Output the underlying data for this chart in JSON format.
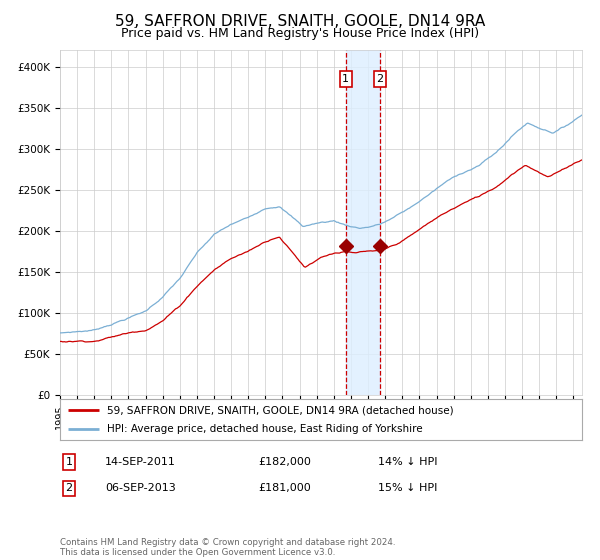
{
  "title": "59, SAFFRON DRIVE, SNAITH, GOOLE, DN14 9RA",
  "subtitle": "Price paid vs. HM Land Registry's House Price Index (HPI)",
  "legend_house": "59, SAFFRON DRIVE, SNAITH, GOOLE, DN14 9RA (detached house)",
  "legend_hpi": "HPI: Average price, detached house, East Riding of Yorkshire",
  "sale1_date": "14-SEP-2011",
  "sale1_price": "£182,000",
  "sale1_hpi": "14% ↓ HPI",
  "sale1_year": 2011.7,
  "sale1_value": 182000,
  "sale2_date": "06-SEP-2013",
  "sale2_price": "£181,000",
  "sale2_hpi": "15% ↓ HPI",
  "sale2_year": 2013.7,
  "sale2_value": 181000,
  "footer": "Contains HM Land Registry data © Crown copyright and database right 2024.\nThis data is licensed under the Open Government Licence v3.0.",
  "ylim": [
    0,
    420000
  ],
  "xlim_start": 1995.0,
  "xlim_end": 2025.5,
  "house_color": "#cc0000",
  "hpi_color": "#7bafd4",
  "marker_color": "#990000",
  "vline_color": "#cc0000",
  "shade_color": "#ddeeff",
  "background_color": "#ffffff",
  "grid_color": "#cccccc",
  "title_fontsize": 11,
  "subtitle_fontsize": 9
}
